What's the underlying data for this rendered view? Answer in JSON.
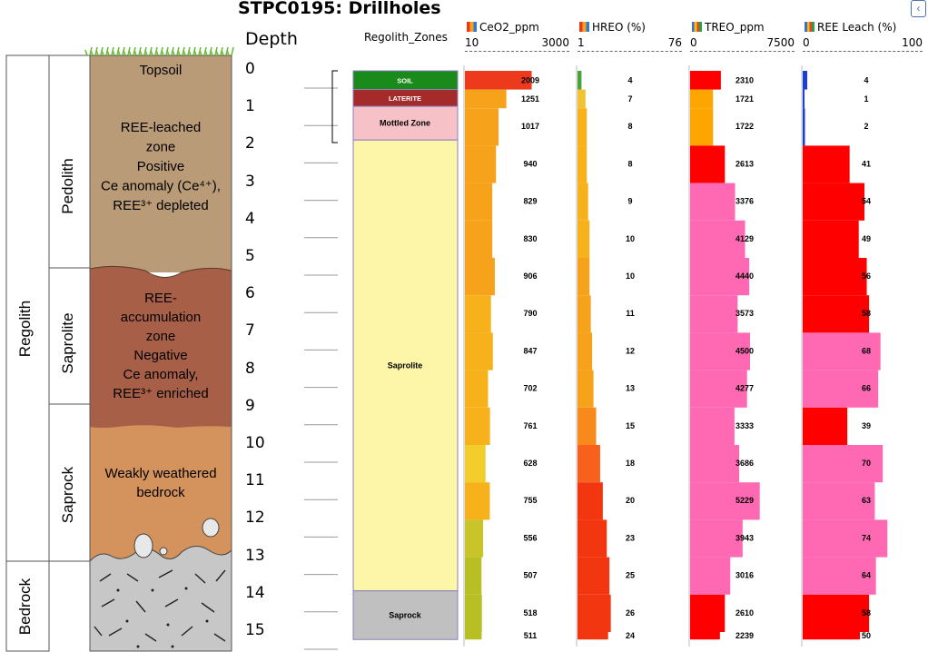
{
  "title": "STPC0195: Drillholes",
  "nav_icon": "chevron-left-icon",
  "left_diagram": {
    "regolith": "Regolith",
    "bedrock": "Bedrock",
    "pedolith": "Pedolith",
    "saprolite": "Saprolite",
    "saprock": "Saprock",
    "topsoil": "Topsoil",
    "leached_lines": [
      "REE-leached",
      "zone",
      "Positive",
      "Ce anomaly (Ce⁴⁺),",
      "REE³⁺ depleted"
    ],
    "accum_lines": [
      "REE-",
      "accumulation",
      "zone",
      "Negative",
      "Ce anomaly,",
      "REE³⁺ enriched"
    ],
    "weak_lines": [
      "Weakly weathered",
      "bedrock"
    ],
    "colors": {
      "topsoil": "#b99b78",
      "leached": "#b99b78",
      "accum": "#a85f47",
      "saprock": "#d4925c",
      "bedrock": "#c7c7c7",
      "grass": "#6dbb3d"
    }
  },
  "depth_header": "Depth",
  "depths": [
    "0",
    "1",
    "2",
    "3",
    "4",
    "5",
    "6",
    "7",
    "8",
    "9",
    "10",
    "11",
    "12",
    "13",
    "14",
    "15"
  ],
  "zones_header": "Regolith_Zones",
  "zones": [
    {
      "label": "SOIL",
      "top": 0,
      "bottom": 0.5,
      "color": "#1a8a1a",
      "text_color": "#ffffff"
    },
    {
      "label": "LATERITE",
      "top": 0.5,
      "bottom": 0.95,
      "color": "#a52a2a",
      "text_color": "#ffffff"
    },
    {
      "label": "Mottled Zone",
      "top": 0.95,
      "bottom": 1.85,
      "color": "#f7c1c8",
      "text_color": "#000000"
    },
    {
      "label": "Saprolite",
      "top": 1.85,
      "bottom": 13.9,
      "color": "#fdf5a8",
      "text_color": "#000000"
    },
    {
      "label": "Saprock",
      "top": 13.9,
      "bottom": 15.2,
      "color": "#c0c0c0",
      "text_color": "#000000"
    }
  ],
  "chart_data": {
    "type": "bar",
    "intervals": [
      {
        "top": 0,
        "bottom": 0.5
      },
      {
        "top": 0.5,
        "bottom": 1
      },
      {
        "top": 1,
        "bottom": 2
      },
      {
        "top": 2,
        "bottom": 3
      },
      {
        "top": 3,
        "bottom": 4
      },
      {
        "top": 4,
        "bottom": 5
      },
      {
        "top": 5,
        "bottom": 6
      },
      {
        "top": 6,
        "bottom": 7
      },
      {
        "top": 7,
        "bottom": 8
      },
      {
        "top": 8,
        "bottom": 9
      },
      {
        "top": 9,
        "bottom": 10
      },
      {
        "top": 10,
        "bottom": 11
      },
      {
        "top": 11,
        "bottom": 12
      },
      {
        "top": 12,
        "bottom": 13
      },
      {
        "top": 13,
        "bottom": 14
      },
      {
        "top": 14,
        "bottom": 15
      },
      {
        "top": 15,
        "bottom": 15.2
      }
    ],
    "series": [
      {
        "name": "CeO2_ppm",
        "min": 10,
        "max": 3000,
        "range_labels": [
          "10",
          "3000"
        ],
        "values": [
          2009,
          1251,
          1017,
          940,
          829,
          830,
          906,
          790,
          847,
          702,
          761,
          628,
          755,
          556,
          507,
          518,
          511
        ],
        "colors": [
          "#ee3a1c",
          "#f7a21b",
          "#f7a21b",
          "#f7a21b",
          "#f7a21b",
          "#f7a21b",
          "#f7a21b",
          "#f7b21b",
          "#f7b21b",
          "#f7b21b",
          "#f7b21b",
          "#f2cd2c",
          "#f7b21b",
          "#c9c42a",
          "#b8bf24",
          "#b8bf24",
          "#b8bf24"
        ]
      },
      {
        "name": "HREO (%)",
        "min": 1,
        "max": 76,
        "range_labels": [
          "1",
          "76"
        ],
        "values": [
          4,
          7,
          8,
          8,
          9,
          10,
          10,
          11,
          12,
          13,
          15,
          18,
          20,
          23,
          25,
          26,
          24
        ],
        "colors": [
          "#4aa33a",
          "#f2c230",
          "#f7b21b",
          "#f7b21b",
          "#f7b21b",
          "#f7b21b",
          "#f7a21b",
          "#f7a21b",
          "#f7a21b",
          "#f7a21b",
          "#f78a1b",
          "#f7611b",
          "#f2360f",
          "#f2360f",
          "#f2360f",
          "#f2360f",
          "#f2360f"
        ]
      },
      {
        "name": "TREO_ppm",
        "min": 0,
        "max": 7500,
        "range_labels": [
          "0",
          "7500"
        ],
        "values": [
          2310,
          1721,
          1722,
          2613,
          3376,
          4129,
          4440,
          3573,
          4500,
          4277,
          3333,
          3686,
          5229,
          3943,
          3016,
          2610,
          2239
        ],
        "colors": [
          "#ff0000",
          "#ffa500",
          "#ffa500",
          "#ff0000",
          "#ff69b4",
          "#ff69b4",
          "#ff69b4",
          "#ff69b4",
          "#ff69b4",
          "#ff69b4",
          "#ff69b4",
          "#ff69b4",
          "#ff69b4",
          "#ff69b4",
          "#ff69b4",
          "#ff0000",
          "#ff0000"
        ]
      },
      {
        "name": "REE Leach (%)",
        "min": 0,
        "max": 100,
        "range_labels": [
          "0",
          "100"
        ],
        "values": [
          4,
          1,
          2,
          41,
          54,
          49,
          56,
          58,
          68,
          66,
          39,
          70,
          63,
          74,
          64,
          58,
          50
        ],
        "colors": [
          "#1a3fd6",
          "#1a3fd6",
          "#1a3fd6",
          "#ff0000",
          "#ff0000",
          "#ff0000",
          "#ff0000",
          "#ff0000",
          "#ff69b4",
          "#ff69b4",
          "#ff0000",
          "#ff69b4",
          "#ff69b4",
          "#ff69b4",
          "#ff69b4",
          "#ff0000",
          "#ff0000"
        ]
      }
    ]
  }
}
